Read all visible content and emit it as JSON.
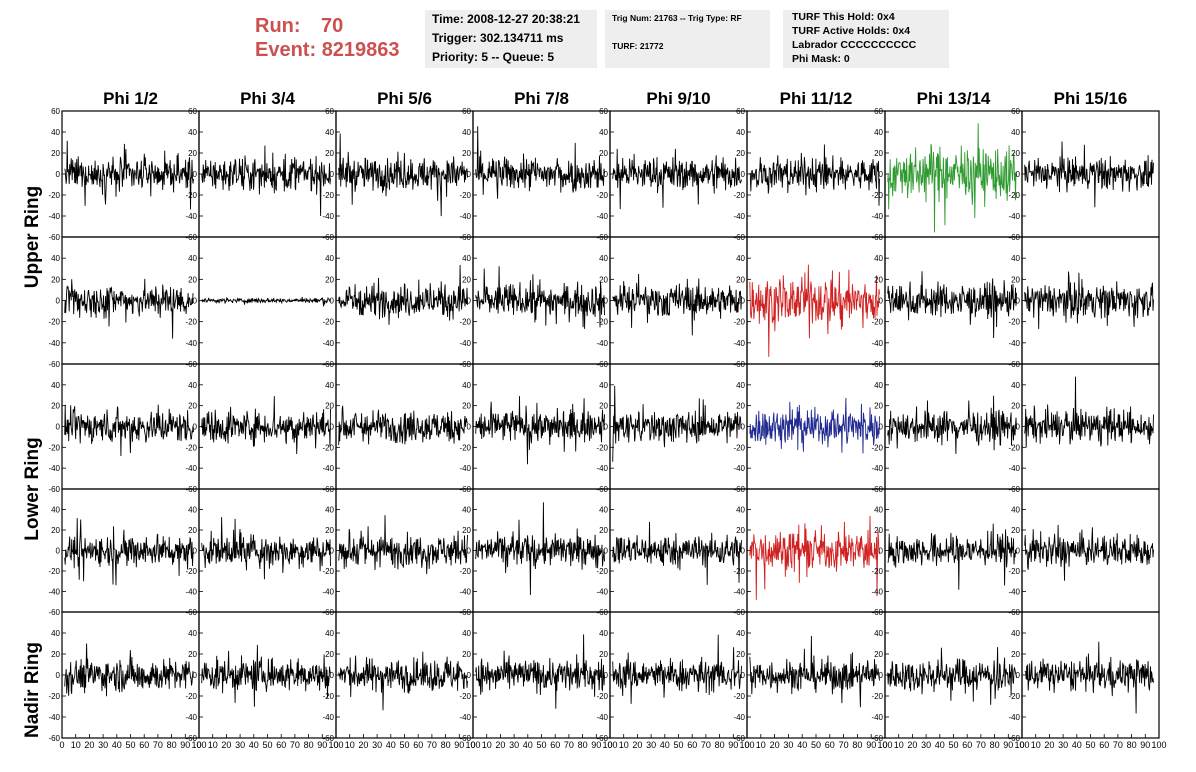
{
  "header": {
    "run_label": "Run:",
    "run_value": "70",
    "event_label": "Event:",
    "event_value": "8219863",
    "time": "Time: 2008-12-27 20:38:21",
    "trigger": "Trigger: 302.134711 ms",
    "priority": "Priority: 5 -- Queue: 5",
    "trig_num": "Trig Num: 21763 -- Trig Type: RF",
    "turf": "TURF: 21772",
    "turf_this_hold": "TURF This Hold: 0x4",
    "turf_active_holds": "TURF Active Holds: 0x4",
    "labrador": "Labrador CCCCCCCCCC",
    "phi_mask": "Phi Mask: 0",
    "accent_color": "#cd5050",
    "panel_bg": "#eeeeee"
  },
  "chart_data": {
    "type": "line",
    "description_grid": "5 rows x 8 columns of waveform panels",
    "columns": [
      "Phi 1/2",
      "Phi 3/4",
      "Phi 5/6",
      "Phi 7/8",
      "Phi 9/10",
      "Phi 11/12",
      "Phi 13/14",
      "Phi 15/16"
    ],
    "row_labels": [
      "Upper Ring",
      "Lower Ring",
      "Nadir Ring"
    ],
    "ylim": [
      -60,
      60
    ],
    "xlim": [
      0,
      100
    ],
    "yticks": [
      "60",
      "40",
      "20",
      "0",
      "-20",
      "-40",
      "-60"
    ],
    "xticks": [
      "0",
      "10",
      "20",
      "30",
      "40",
      "50",
      "60",
      "70",
      "80",
      "90",
      "100"
    ],
    "colors": {
      "default": "#000000",
      "green": "#2f9a2f",
      "red": "#d02020",
      "blue": "#202a90"
    },
    "highlighted_panels": [
      {
        "row": 0,
        "col": 6,
        "color": "green",
        "amplitude": 22
      },
      {
        "row": 1,
        "col": 5,
        "color": "red",
        "amplitude": 20
      },
      {
        "row": 2,
        "col": 5,
        "color": "blue",
        "amplitude": 16
      },
      {
        "row": 3,
        "col": 5,
        "color": "red",
        "amplitude": 18
      }
    ],
    "quiet_panels": [
      {
        "row": 1,
        "col": 1,
        "amplitude": 2
      }
    ],
    "typical_amplitude": 14
  }
}
